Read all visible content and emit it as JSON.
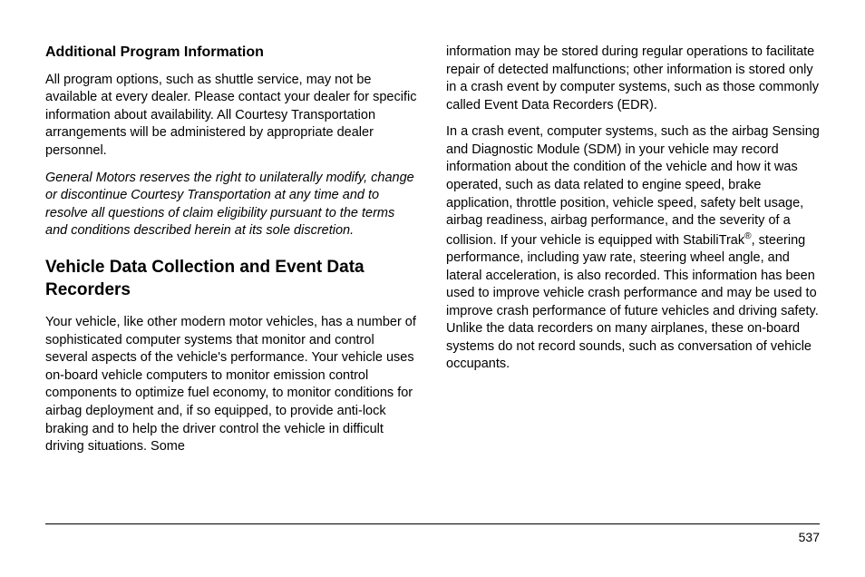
{
  "leftColumn": {
    "heading1": "Additional Program Information",
    "para1": "All program options, such as shuttle service, may not be available at every dealer. Please contact your dealer for specific information about availability. All Courtesy Transportation arrangements will be administered by appropriate dealer personnel.",
    "para2": "General Motors reserves the right to unilaterally modify, change or discontinue Courtesy Transportation at any time and to resolve all questions of claim eligibility pursuant to the terms and conditions described herein at its sole discretion.",
    "heading2": "Vehicle Data Collection and Event Data Recorders",
    "para3": "Your vehicle, like other modern motor vehicles, has a number of sophisticated computer systems that monitor and control several aspects of the vehicle's performance. Your vehicle uses on-board vehicle computers to monitor emission control components to optimize fuel economy, to monitor conditions for airbag deployment and, if so equipped, to provide anti-lock braking and to help the driver control the vehicle in difficult driving situations. Some"
  },
  "rightColumn": {
    "para1": "information may be stored during regular operations to facilitate repair of detected malfunctions; other information is stored only in a crash event by computer systems, such as those commonly called Event Data Recorders (EDR).",
    "para2_part1": "In a crash event, computer systems, such as the airbag Sensing and Diagnostic Module (SDM) in your vehicle may record information about the condition of the vehicle and how it was operated, such as data related to engine speed, brake application, throttle position, vehicle speed, safety belt usage, airbag readiness, airbag performance, and the severity of a collision. If your vehicle is equipped with StabiliTrak",
    "para2_part2": ", steering performance, including yaw rate, steering wheel angle, and lateral acceleration, is also recorded. This information has been used to improve vehicle crash performance and may be used to improve crash performance of future vehicles and driving safety. Unlike the data recorders on many airplanes, these on-board systems do not record sounds, such as conversation of vehicle occupants."
  },
  "pageNumber": "537"
}
